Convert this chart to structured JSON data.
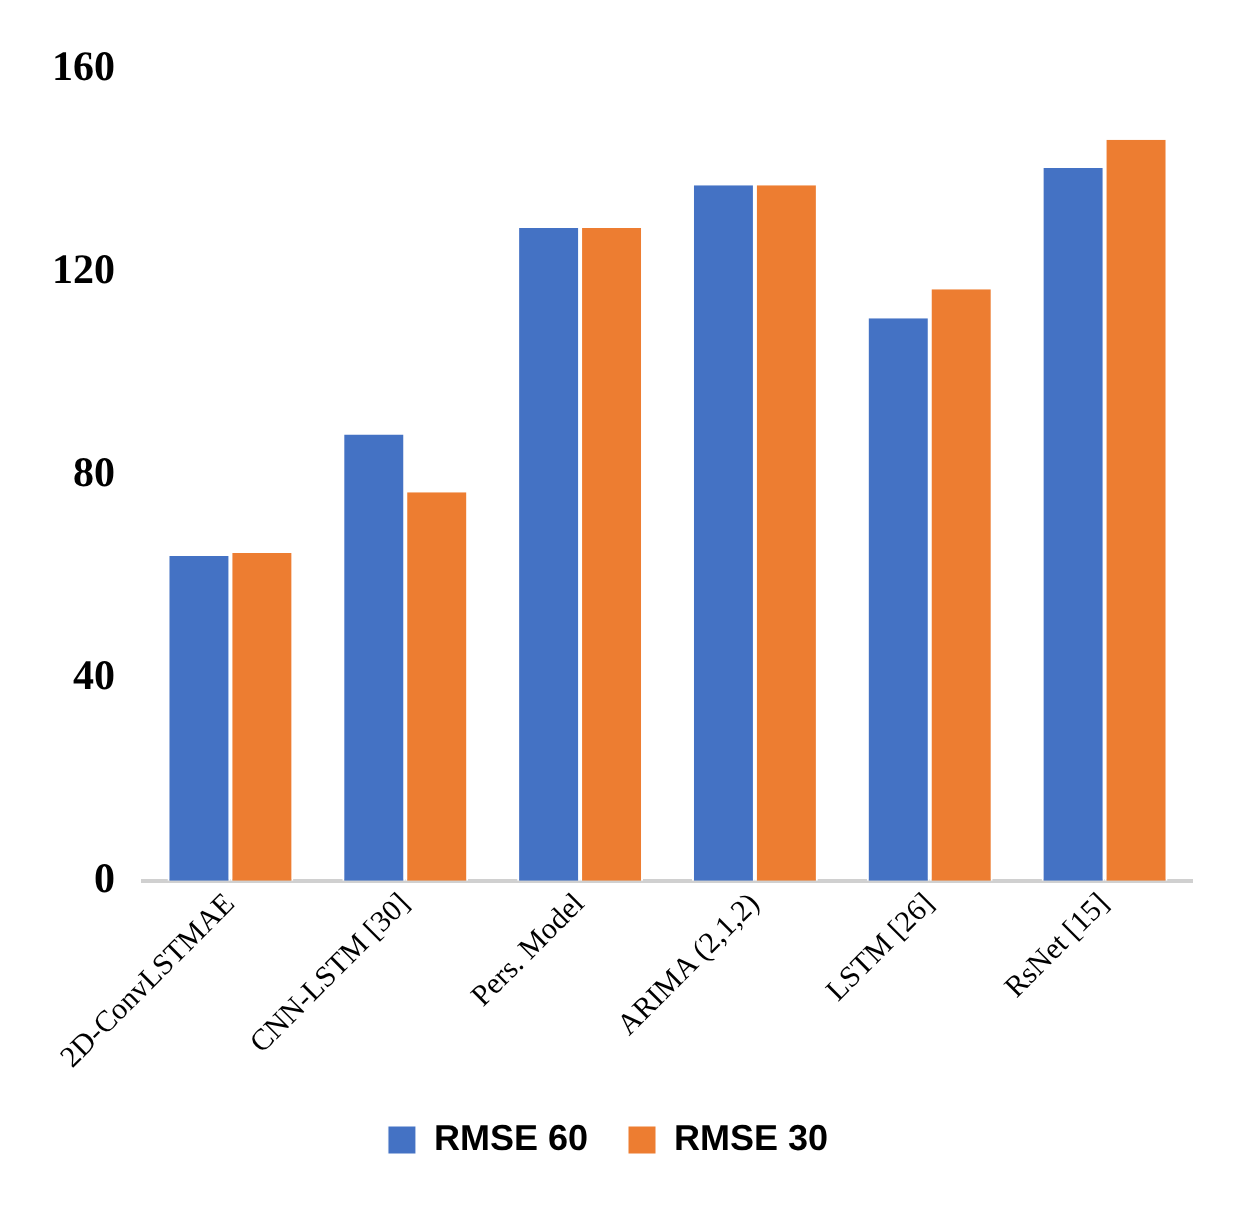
{
  "chart_data": {
    "type": "bar",
    "categories": [
      "2D-ConvLSTMAE",
      "CNN-LSTM [30]",
      "Pers. Model",
      "ARIMA (2,1,2)",
      "LSTM [26]",
      "RsNet [15]"
    ],
    "series": [
      {
        "name": "RMSE 60",
        "color": "#4472c4",
        "values": [
          64.0,
          88.0,
          128.7,
          137.1,
          110.9,
          140.5
        ]
      },
      {
        "name": "RMSE 30",
        "color": "#ed7d31",
        "values": [
          64.6,
          76.6,
          128.7,
          137.1,
          116.6,
          146.1
        ]
      }
    ],
    "ylim": [
      0,
      160
    ],
    "yticks": [
      0,
      40,
      80,
      120,
      160
    ],
    "grid": false,
    "legend": "bottom"
  }
}
